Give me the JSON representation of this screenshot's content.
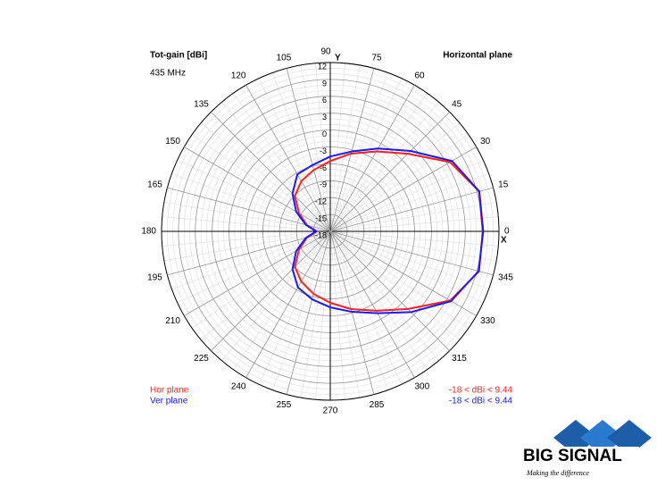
{
  "chart_data": {
    "type": "polar",
    "title": "Tot-gain [dBi]",
    "subtitle": "435 MHz",
    "plane": "Horizontal plane",
    "x_axis_label": "X",
    "y_axis_label": "Y",
    "rlim": [
      -18,
      12
    ],
    "rticks": [
      12,
      9,
      6,
      3,
      0,
      -3,
      -6,
      -9,
      -12,
      -15,
      -18
    ],
    "theta_ticks": [
      0,
      15,
      30,
      45,
      60,
      75,
      90,
      105,
      120,
      135,
      150,
      165,
      180,
      195,
      210,
      225,
      240,
      255,
      270,
      285,
      300,
      315,
      330,
      345
    ],
    "theta": [
      0,
      15,
      30,
      45,
      60,
      75,
      90,
      105,
      120,
      135,
      150,
      165,
      180,
      195,
      210,
      225,
      240,
      255,
      270,
      285,
      300,
      315,
      330,
      345
    ],
    "series": [
      {
        "name": "Hor plane",
        "color": "#ff2020",
        "range_label": "-18 < dBi < 9.44",
        "values": [
          9.1,
          9.4,
          6.6,
          1.5,
          -1.6,
          -3.7,
          -5.5,
          -6.7,
          -7.7,
          -9.1,
          -11.6,
          -13.7,
          -15.6,
          -13.7,
          -11.6,
          -9.1,
          -7.7,
          -6.5,
          -5.3,
          -3.7,
          -1.7,
          1.5,
          6.6,
          9.4
        ]
      },
      {
        "name": "Ver plane",
        "color": "#1a1aff",
        "range_label": "-18 < dBi < 9.44",
        "values": [
          9.2,
          9.44,
          7.0,
          2.2,
          -1.0,
          -3.3,
          -4.7,
          -5.8,
          -6.3,
          -8.5,
          -11.0,
          -13.5,
          -15.5,
          -13.5,
          -11.0,
          -8.5,
          -6.5,
          -5.5,
          -4.5,
          -3.2,
          -1.2,
          2.3,
          6.8,
          9.3
        ]
      }
    ],
    "logo": {
      "text": "BIG SIGNAL",
      "tagline": "Making the difference"
    }
  }
}
